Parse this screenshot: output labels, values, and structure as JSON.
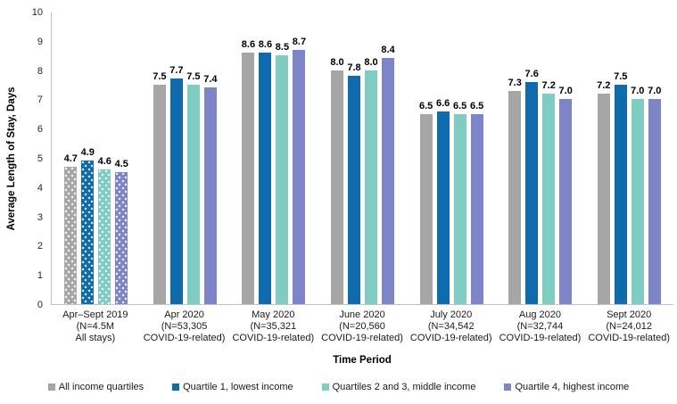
{
  "chart_data": {
    "type": "bar",
    "title": "",
    "xlabel": "Time Period",
    "ylabel": "Average Length of Stay, Days",
    "ylim": [
      0,
      10
    ],
    "yticks": [
      0,
      1,
      2,
      3,
      4,
      5,
      6,
      7,
      8,
      9,
      10
    ],
    "grid": false,
    "legend_position": "bottom",
    "value_label_format": "one_decimal",
    "categories": [
      {
        "lines": [
          "Apr–Sept 2019",
          "(N=4.5M",
          "All stays)"
        ],
        "patterned": true
      },
      {
        "lines": [
          "Apr 2020",
          "(N=53,305",
          "COVID-19-related)"
        ],
        "patterned": false
      },
      {
        "lines": [
          "May 2020",
          "(N=35,321",
          "COVID-19-related)"
        ],
        "patterned": false
      },
      {
        "lines": [
          "June 2020",
          "(N=20,560",
          "COVID-19-related)"
        ],
        "patterned": false
      },
      {
        "lines": [
          "July 2020",
          "(N=34,542",
          "COVID-19-related)"
        ],
        "patterned": false
      },
      {
        "lines": [
          "Aug 2020",
          "(N=32,744",
          "COVID-19-related)"
        ],
        "patterned": false
      },
      {
        "lines": [
          "Sept 2020",
          "(N=24,012",
          "COVID-19-related)"
        ],
        "patterned": false
      }
    ],
    "series": [
      {
        "name": "All income quartiles",
        "color": "#a6a6a6",
        "values": [
          4.7,
          7.5,
          8.6,
          8.0,
          6.5,
          7.3,
          7.2
        ]
      },
      {
        "name": "Quartile 1, lowest income",
        "color": "#0f6aae",
        "values": [
          4.9,
          7.7,
          8.6,
          7.8,
          6.6,
          7.6,
          7.5
        ]
      },
      {
        "name": "Quartiles 2 and 3, middle income",
        "color": "#7fccc3",
        "values": [
          4.6,
          7.5,
          8.5,
          8.0,
          6.5,
          7.2,
          7.0
        ]
      },
      {
        "name": "Quartile 4, highest income",
        "color": "#7d84c7",
        "values": [
          4.5,
          7.4,
          8.7,
          8.4,
          6.5,
          7.0,
          7.0
        ]
      }
    ],
    "axis_color": "#c2c2c2"
  }
}
